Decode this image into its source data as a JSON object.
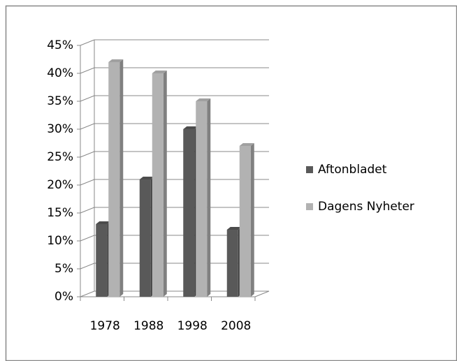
{
  "chart_data": {
    "type": "bar3d",
    "categories": [
      "1978",
      "1988",
      "1998",
      "2008"
    ],
    "series": [
      {
        "name": "Aftonbladet",
        "color": "#595959",
        "values": [
          13,
          21,
          30,
          12
        ]
      },
      {
        "name": "Dagens Nyheter",
        "color": "#b2b2b2",
        "values": [
          42,
          40,
          35,
          27
        ]
      }
    ],
    "ylim": [
      0,
      45
    ],
    "yticks": [
      {
        "value": 0,
        "label": "0%"
      },
      {
        "value": 5,
        "label": "5%"
      },
      {
        "value": 10,
        "label": "10%"
      },
      {
        "value": 15,
        "label": "15%"
      },
      {
        "value": 20,
        "label": "20%"
      },
      {
        "value": 25,
        "label": "25%"
      },
      {
        "value": 30,
        "label": "30%"
      },
      {
        "value": 35,
        "label": "35%"
      },
      {
        "value": 40,
        "label": "40%"
      },
      {
        "value": 45,
        "label": "45%"
      }
    ],
    "grid": true,
    "legend": "right"
  }
}
